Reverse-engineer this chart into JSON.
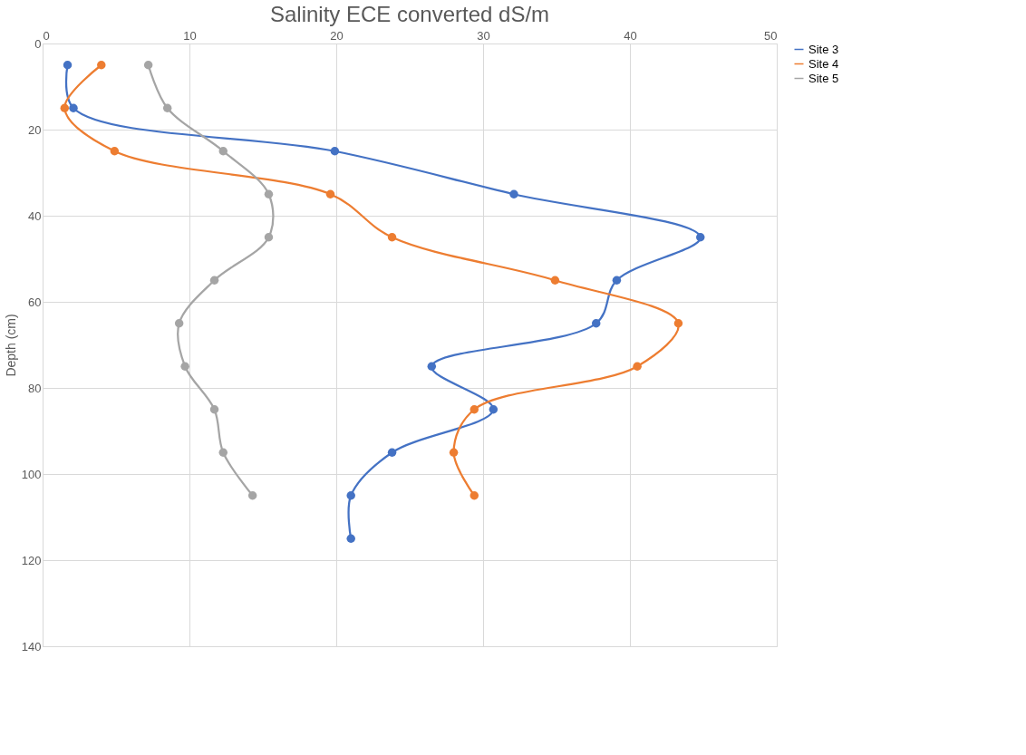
{
  "chart_data": {
    "type": "line",
    "title": "Salinity ECE converted dS/m",
    "ylabel": "Depth (cm)",
    "xlim": [
      0,
      50
    ],
    "xticks": [
      0,
      10,
      20,
      30,
      40,
      50
    ],
    "ylim": [
      140,
      0
    ],
    "yticks": [
      0,
      20,
      40,
      60,
      80,
      100,
      120,
      140
    ],
    "grid": true,
    "legend": "right",
    "marker": "circle",
    "line_style": "solid",
    "series": [
      {
        "name": "Site 3",
        "color": "#4472c4",
        "x": [
          1.7,
          2.1,
          19.9,
          32.1,
          44.8,
          39.1,
          37.7,
          26.5,
          30.7,
          23.8,
          21.0,
          21.0
        ],
        "values": [
          5,
          15,
          25,
          35,
          45,
          55,
          65,
          75,
          85,
          95,
          105,
          115
        ]
      },
      {
        "name": "Site 4",
        "color": "#ed7d31",
        "x": [
          4.0,
          1.5,
          4.9,
          19.6,
          23.8,
          34.9,
          43.3,
          40.5,
          29.4,
          28.0,
          29.4
        ],
        "values": [
          5,
          15,
          25,
          35,
          45,
          55,
          65,
          75,
          85,
          95,
          105
        ]
      },
      {
        "name": "Site 5",
        "color": "#a5a5a5",
        "x": [
          7.2,
          8.5,
          12.3,
          15.4,
          15.4,
          11.7,
          9.3,
          9.7,
          11.7,
          12.3,
          14.3
        ],
        "values": [
          5,
          15,
          25,
          35,
          45,
          55,
          65,
          75,
          85,
          95,
          105
        ]
      }
    ]
  }
}
